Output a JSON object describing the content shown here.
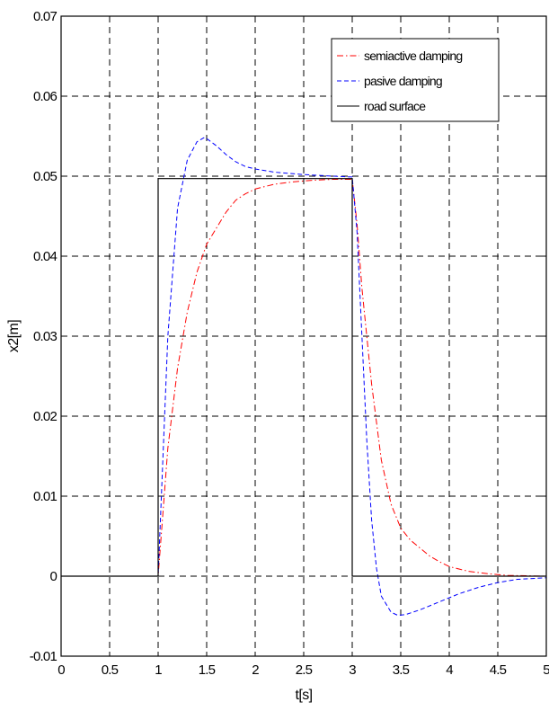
{
  "chart_data": {
    "type": "line",
    "title": "",
    "xlabel": "t[s]",
    "ylabel": "x2[m]",
    "xlim": [
      0,
      5
    ],
    "ylim": [
      -0.01,
      0.07
    ],
    "x_ticks": [
      "0",
      "0.5",
      "1",
      "1.5",
      "2",
      "2.5",
      "3",
      "3.5",
      "4",
      "4.5",
      "5"
    ],
    "y_ticks": [
      "-0.01",
      "0",
      "0.01",
      "0.02",
      "0.03",
      "0.04",
      "0.05",
      "0.06",
      "0.07"
    ],
    "grid": true,
    "legend_position": "top-right",
    "series": [
      {
        "name": "semiactive damping",
        "color": "#ff0000",
        "style": "dash-dot",
        "points": [
          [
            0,
            0
          ],
          [
            1,
            0
          ],
          [
            1.05,
            0.008
          ],
          [
            1.1,
            0.016
          ],
          [
            1.2,
            0.026
          ],
          [
            1.3,
            0.033
          ],
          [
            1.4,
            0.038
          ],
          [
            1.5,
            0.0415
          ],
          [
            1.6,
            0.0435
          ],
          [
            1.7,
            0.0455
          ],
          [
            1.8,
            0.047
          ],
          [
            1.9,
            0.0478
          ],
          [
            2,
            0.0484
          ],
          [
            2.2,
            0.049
          ],
          [
            2.4,
            0.0493
          ],
          [
            2.6,
            0.0495
          ],
          [
            2.8,
            0.0496
          ],
          [
            3,
            0.0496
          ],
          [
            3.05,
            0.044
          ],
          [
            3.1,
            0.036
          ],
          [
            3.2,
            0.024
          ],
          [
            3.3,
            0.0145
          ],
          [
            3.4,
            0.009
          ],
          [
            3.5,
            0.006
          ],
          [
            3.6,
            0.0045
          ],
          [
            3.7,
            0.0035
          ],
          [
            3.8,
            0.0025
          ],
          [
            3.9,
            0.0018
          ],
          [
            4,
            0.0012
          ],
          [
            4.2,
            0.0006
          ],
          [
            4.4,
            0.0003
          ],
          [
            4.6,
            0.0001
          ],
          [
            5,
            0
          ]
        ]
      },
      {
        "name": "pasive damping",
        "color": "#0000ff",
        "style": "dashed",
        "points": [
          [
            0,
            0
          ],
          [
            1,
            0
          ],
          [
            1.05,
            0.015
          ],
          [
            1.1,
            0.03
          ],
          [
            1.2,
            0.046
          ],
          [
            1.3,
            0.052
          ],
          [
            1.4,
            0.0543
          ],
          [
            1.47,
            0.0548
          ],
          [
            1.5,
            0.0547
          ],
          [
            1.6,
            0.0538
          ],
          [
            1.7,
            0.0527
          ],
          [
            1.8,
            0.0518
          ],
          [
            1.9,
            0.0512
          ],
          [
            2,
            0.0509
          ],
          [
            2.2,
            0.0505
          ],
          [
            2.5,
            0.0502
          ],
          [
            2.8,
            0.05
          ],
          [
            3,
            0.0499
          ],
          [
            3.05,
            0.043
          ],
          [
            3.1,
            0.03
          ],
          [
            3.15,
            0.017
          ],
          [
            3.2,
            0.007
          ],
          [
            3.25,
            0.001
          ],
          [
            3.3,
            -0.0025
          ],
          [
            3.4,
            -0.0045
          ],
          [
            3.47,
            -0.0049
          ],
          [
            3.55,
            -0.0048
          ],
          [
            3.7,
            -0.0042
          ],
          [
            3.9,
            -0.0032
          ],
          [
            4.1,
            -0.0022
          ],
          [
            4.3,
            -0.0014
          ],
          [
            4.5,
            -0.0008
          ],
          [
            4.7,
            -0.0004
          ],
          [
            5,
            -0.0002
          ]
        ]
      },
      {
        "name": "road surface",
        "color": "#000000",
        "style": "solid",
        "points": [
          [
            0,
            0
          ],
          [
            1,
            0
          ],
          [
            1,
            0.0497
          ],
          [
            3,
            0.0497
          ],
          [
            3,
            0
          ],
          [
            5,
            0
          ]
        ]
      }
    ]
  }
}
